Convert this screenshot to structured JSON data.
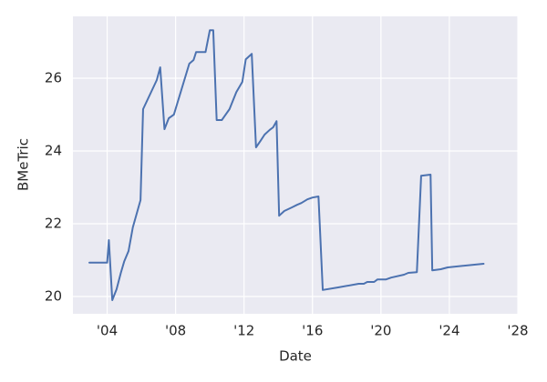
{
  "chart_data": {
    "type": "line",
    "xlabel": "Date",
    "ylabel": "BMeTric",
    "x": [
      2002.96,
      2004.0,
      2004.1,
      2004.3,
      2004.55,
      2004.8,
      2005.0,
      2005.25,
      2005.5,
      2005.95,
      2006.1,
      2006.6,
      2006.9,
      2007.1,
      2007.35,
      2007.6,
      2007.9,
      2008.8,
      2009.05,
      2009.2,
      2009.75,
      2010.0,
      2010.2,
      2010.4,
      2010.7,
      2011.15,
      2011.55,
      2011.9,
      2012.1,
      2012.45,
      2012.7,
      2012.95,
      2013.2,
      2013.5,
      2013.7,
      2013.9,
      2014.05,
      2014.35,
      2014.8,
      2015.1,
      2015.35,
      2015.7,
      2016.0,
      2016.35,
      2016.6,
      2017.5,
      2018.7,
      2019.0,
      2019.2,
      2019.6,
      2019.8,
      2020.3,
      2020.6,
      2021.35,
      2021.6,
      2022.1,
      2022.35,
      2022.9,
      2023.0,
      2023.5,
      2023.9,
      2026.0
    ],
    "series": [
      {
        "name": "BMeTric",
        "color": "#4c72b0",
        "values": [
          20.93,
          20.93,
          21.55,
          19.9,
          20.2,
          20.65,
          20.97,
          21.25,
          21.9,
          22.65,
          25.15,
          25.65,
          25.95,
          26.3,
          24.6,
          24.9,
          25.0,
          26.4,
          26.5,
          26.72,
          26.72,
          27.32,
          27.32,
          24.85,
          24.85,
          25.15,
          25.62,
          25.9,
          26.52,
          26.67,
          24.1,
          24.27,
          24.45,
          24.58,
          24.65,
          24.82,
          22.22,
          22.35,
          22.45,
          22.52,
          22.57,
          22.67,
          22.72,
          22.75,
          20.18,
          20.25,
          20.35,
          20.35,
          20.4,
          20.4,
          20.47,
          20.47,
          20.52,
          20.6,
          20.65,
          20.67,
          23.32,
          23.35,
          20.72,
          20.75,
          20.8,
          20.9
        ]
      }
    ],
    "xlim": [
      2002,
      2028
    ],
    "xticks": [
      {
        "value": 2004,
        "label": "'04"
      },
      {
        "value": 2008,
        "label": "'08"
      },
      {
        "value": 2012,
        "label": "'12"
      },
      {
        "value": 2016,
        "label": "'16"
      },
      {
        "value": 2020,
        "label": "'20"
      },
      {
        "value": 2024,
        "label": "'24"
      },
      {
        "value": 2028,
        "label": "'28"
      }
    ],
    "ylim": [
      19.525,
      27.7
    ],
    "yticks": [
      20,
      22,
      24,
      26
    ],
    "grid": true
  }
}
